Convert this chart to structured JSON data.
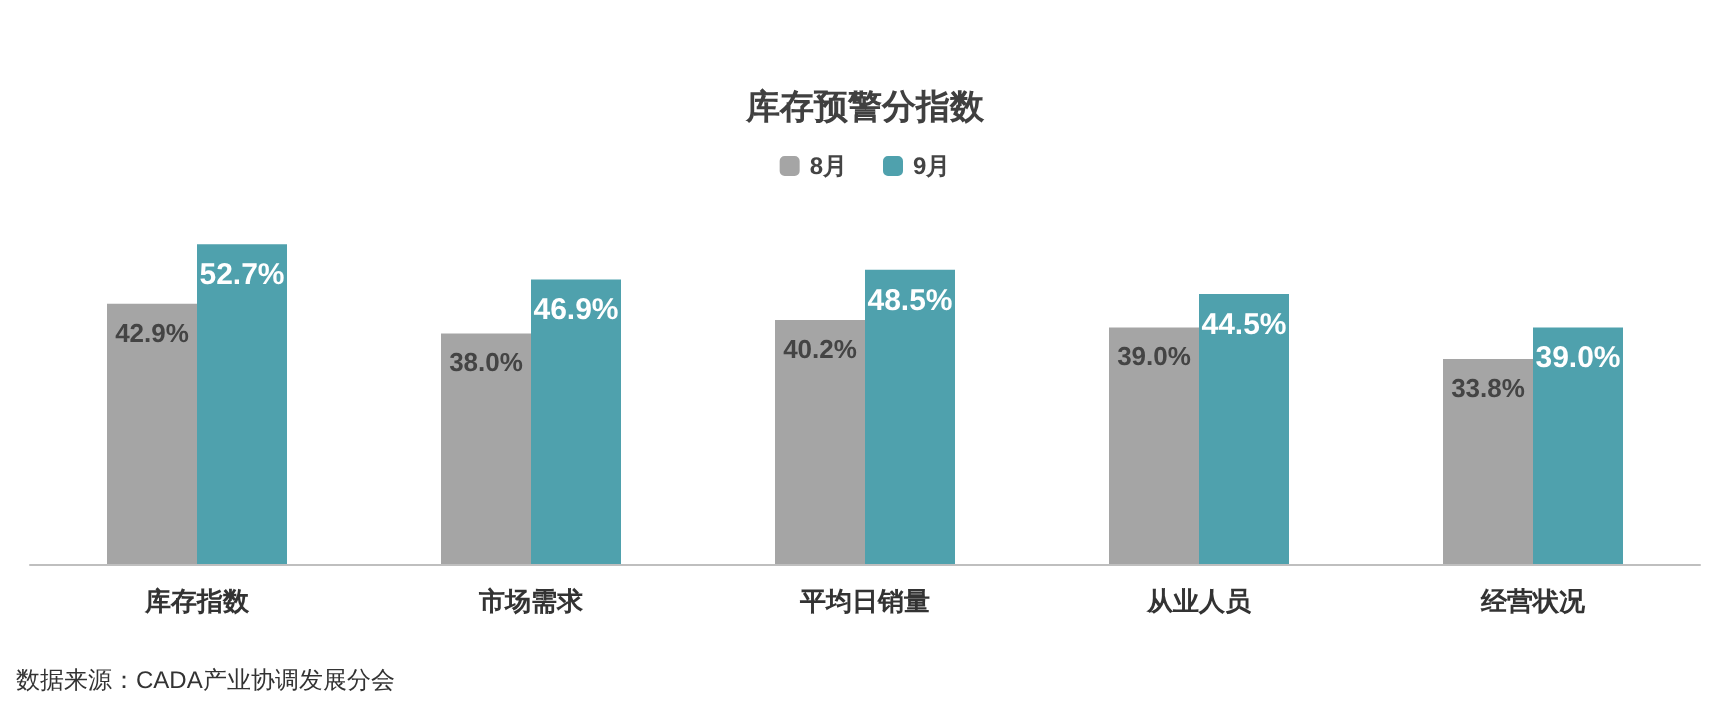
{
  "chart_data": {
    "type": "bar",
    "title": "库存预警分指数",
    "categories": [
      "库存指数",
      "市场需求",
      "平均日销量",
      "从业人员",
      "经营状况"
    ],
    "series": [
      {
        "name": "8月",
        "color": "#a5a5a5",
        "values": [
          42.9,
          38.0,
          40.2,
          39.0,
          33.8
        ],
        "value_labels": [
          "42.9%",
          "38.0%",
          "40.2%",
          "39.0%",
          "33.8%"
        ]
      },
      {
        "name": "9月",
        "color": "#4fa1ad",
        "values": [
          52.7,
          46.9,
          48.5,
          44.5,
          39.0
        ],
        "value_labels": [
          "52.7%",
          "46.9%",
          "48.5%",
          "44.5%",
          "39.0%"
        ]
      }
    ],
    "legend": "top",
    "annotations": [
      "数据来源：CADA产业协调发展分会"
    ]
  }
}
